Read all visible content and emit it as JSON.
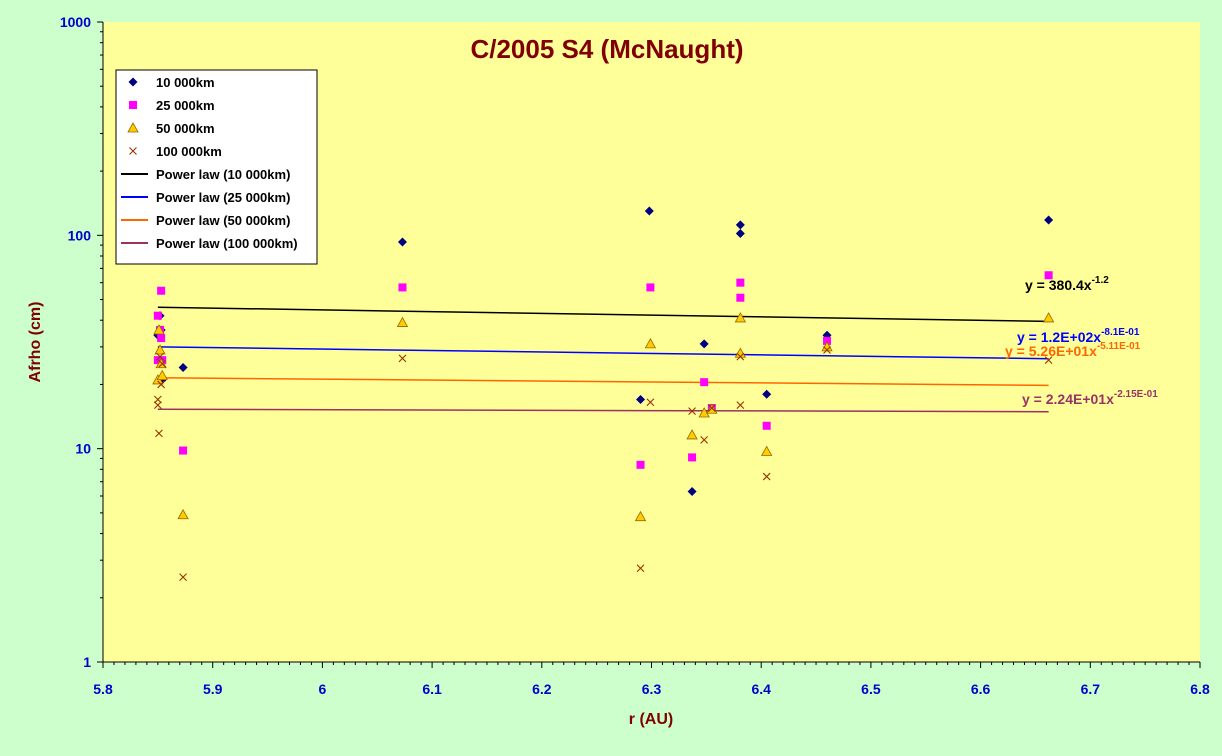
{
  "colors": {
    "page_bg": "#ccffcc",
    "plot_bg": "#ffff99",
    "title": "#800000",
    "axis_title": "#800000",
    "tick_label": "#0000cc"
  },
  "chart_data": {
    "type": "scatter",
    "title": "C/2005 S4 (McNaught)",
    "xlabel": "r (AU)",
    "ylabel": "Afrho (cm)",
    "xlim": [
      5.8,
      6.8
    ],
    "ylim": [
      1,
      1000
    ],
    "yscale": "log",
    "x_ticks": [
      "5.8",
      "5.9",
      "6",
      "6.1",
      "6.2",
      "6.3",
      "6.4",
      "6.5",
      "6.6",
      "6.7",
      "6.8"
    ],
    "y_ticks": [
      "1",
      "10",
      "100",
      "1000"
    ],
    "grid": false,
    "legend_position": "top-left",
    "series": [
      {
        "name": "10 000km",
        "marker": "diamond",
        "color": "#000080",
        "points": [
          [
            5.85,
            80
          ],
          [
            5.85,
            34
          ],
          [
            5.852,
            42
          ],
          [
            5.853,
            36
          ],
          [
            5.854,
            21
          ],
          [
            5.873,
            24
          ],
          [
            6.073,
            93
          ],
          [
            6.29,
            17
          ],
          [
            6.298,
            130
          ],
          [
            6.337,
            6.3
          ],
          [
            6.348,
            31
          ],
          [
            6.381,
            112
          ],
          [
            6.381,
            102
          ],
          [
            6.405,
            18
          ],
          [
            6.46,
            34
          ],
          [
            6.662,
            118
          ]
        ]
      },
      {
        "name": "25 000km",
        "marker": "square",
        "color": "#ff00ff",
        "points": [
          [
            5.85,
            42
          ],
          [
            5.85,
            26
          ],
          [
            5.852,
            36
          ],
          [
            5.853,
            55
          ],
          [
            5.853,
            33
          ],
          [
            5.854,
            26
          ],
          [
            5.873,
            9.8
          ],
          [
            6.073,
            57
          ],
          [
            6.29,
            8.4
          ],
          [
            6.299,
            57
          ],
          [
            6.337,
            9.1
          ],
          [
            6.348,
            20.5
          ],
          [
            6.355,
            15.5
          ],
          [
            6.381,
            60
          ],
          [
            6.381,
            51
          ],
          [
            6.405,
            12.8
          ],
          [
            6.46,
            32
          ],
          [
            6.662,
            65
          ]
        ]
      },
      {
        "name": "50 000km",
        "marker": "triangle",
        "color": "#ffcc00",
        "points": [
          [
            5.85,
            21
          ],
          [
            5.851,
            36
          ],
          [
            5.852,
            29
          ],
          [
            5.853,
            25
          ],
          [
            5.854,
            22
          ],
          [
            5.873,
            4.9
          ],
          [
            6.073,
            39
          ],
          [
            6.29,
            4.8
          ],
          [
            6.299,
            31
          ],
          [
            6.337,
            11.6
          ],
          [
            6.348,
            14.7
          ],
          [
            6.355,
            15.3
          ],
          [
            6.381,
            41
          ],
          [
            6.381,
            28
          ],
          [
            6.405,
            9.7
          ],
          [
            6.46,
            30
          ],
          [
            6.662,
            41
          ]
        ]
      },
      {
        "name": "100 000km",
        "marker": "x",
        "color": "#993300",
        "points": [
          [
            5.85,
            17
          ],
          [
            5.85,
            16
          ],
          [
            5.851,
            11.8
          ],
          [
            5.852,
            27
          ],
          [
            5.853,
            20
          ],
          [
            5.854,
            25
          ],
          [
            5.873,
            2.5
          ],
          [
            6.073,
            26.5
          ],
          [
            6.29,
            2.75
          ],
          [
            6.299,
            16.5
          ],
          [
            6.337,
            15
          ],
          [
            6.348,
            11
          ],
          [
            6.355,
            15.5
          ],
          [
            6.381,
            27
          ],
          [
            6.381,
            16
          ],
          [
            6.405,
            7.4
          ],
          [
            6.46,
            29
          ],
          [
            6.662,
            26
          ]
        ]
      }
    ],
    "fits": [
      {
        "name": "Power law (10 000km)",
        "color": "#000000",
        "x": [
          5.85,
          6.662
        ],
        "y": [
          46,
          39.5
        ],
        "equation": "y = 380.4x",
        "exponent": "-1.2",
        "eq_color": "#000000"
      },
      {
        "name": "Power law (25 000km)",
        "color": "#0000ff",
        "x": [
          5.85,
          6.662
        ],
        "y": [
          30,
          26.4
        ],
        "equation": "y = 1.2E+02x",
        "exponent": "-8.1E-01",
        "eq_color": "#0000ff"
      },
      {
        "name": "Power law (50 000km)",
        "color": "#ff6600",
        "x": [
          5.85,
          6.662
        ],
        "y": [
          21.5,
          19.8
        ],
        "equation": "y = 5.26E+01x",
        "exponent": "-5.11E-01",
        "eq_color": "#ff6600"
      },
      {
        "name": "Power law (100 000km)",
        "color": "#993366",
        "x": [
          5.85,
          6.662
        ],
        "y": [
          15.3,
          14.9
        ],
        "equation": "y = 2.24E+01x",
        "exponent": "-2.15E-01",
        "eq_color": "#993366"
      }
    ]
  }
}
